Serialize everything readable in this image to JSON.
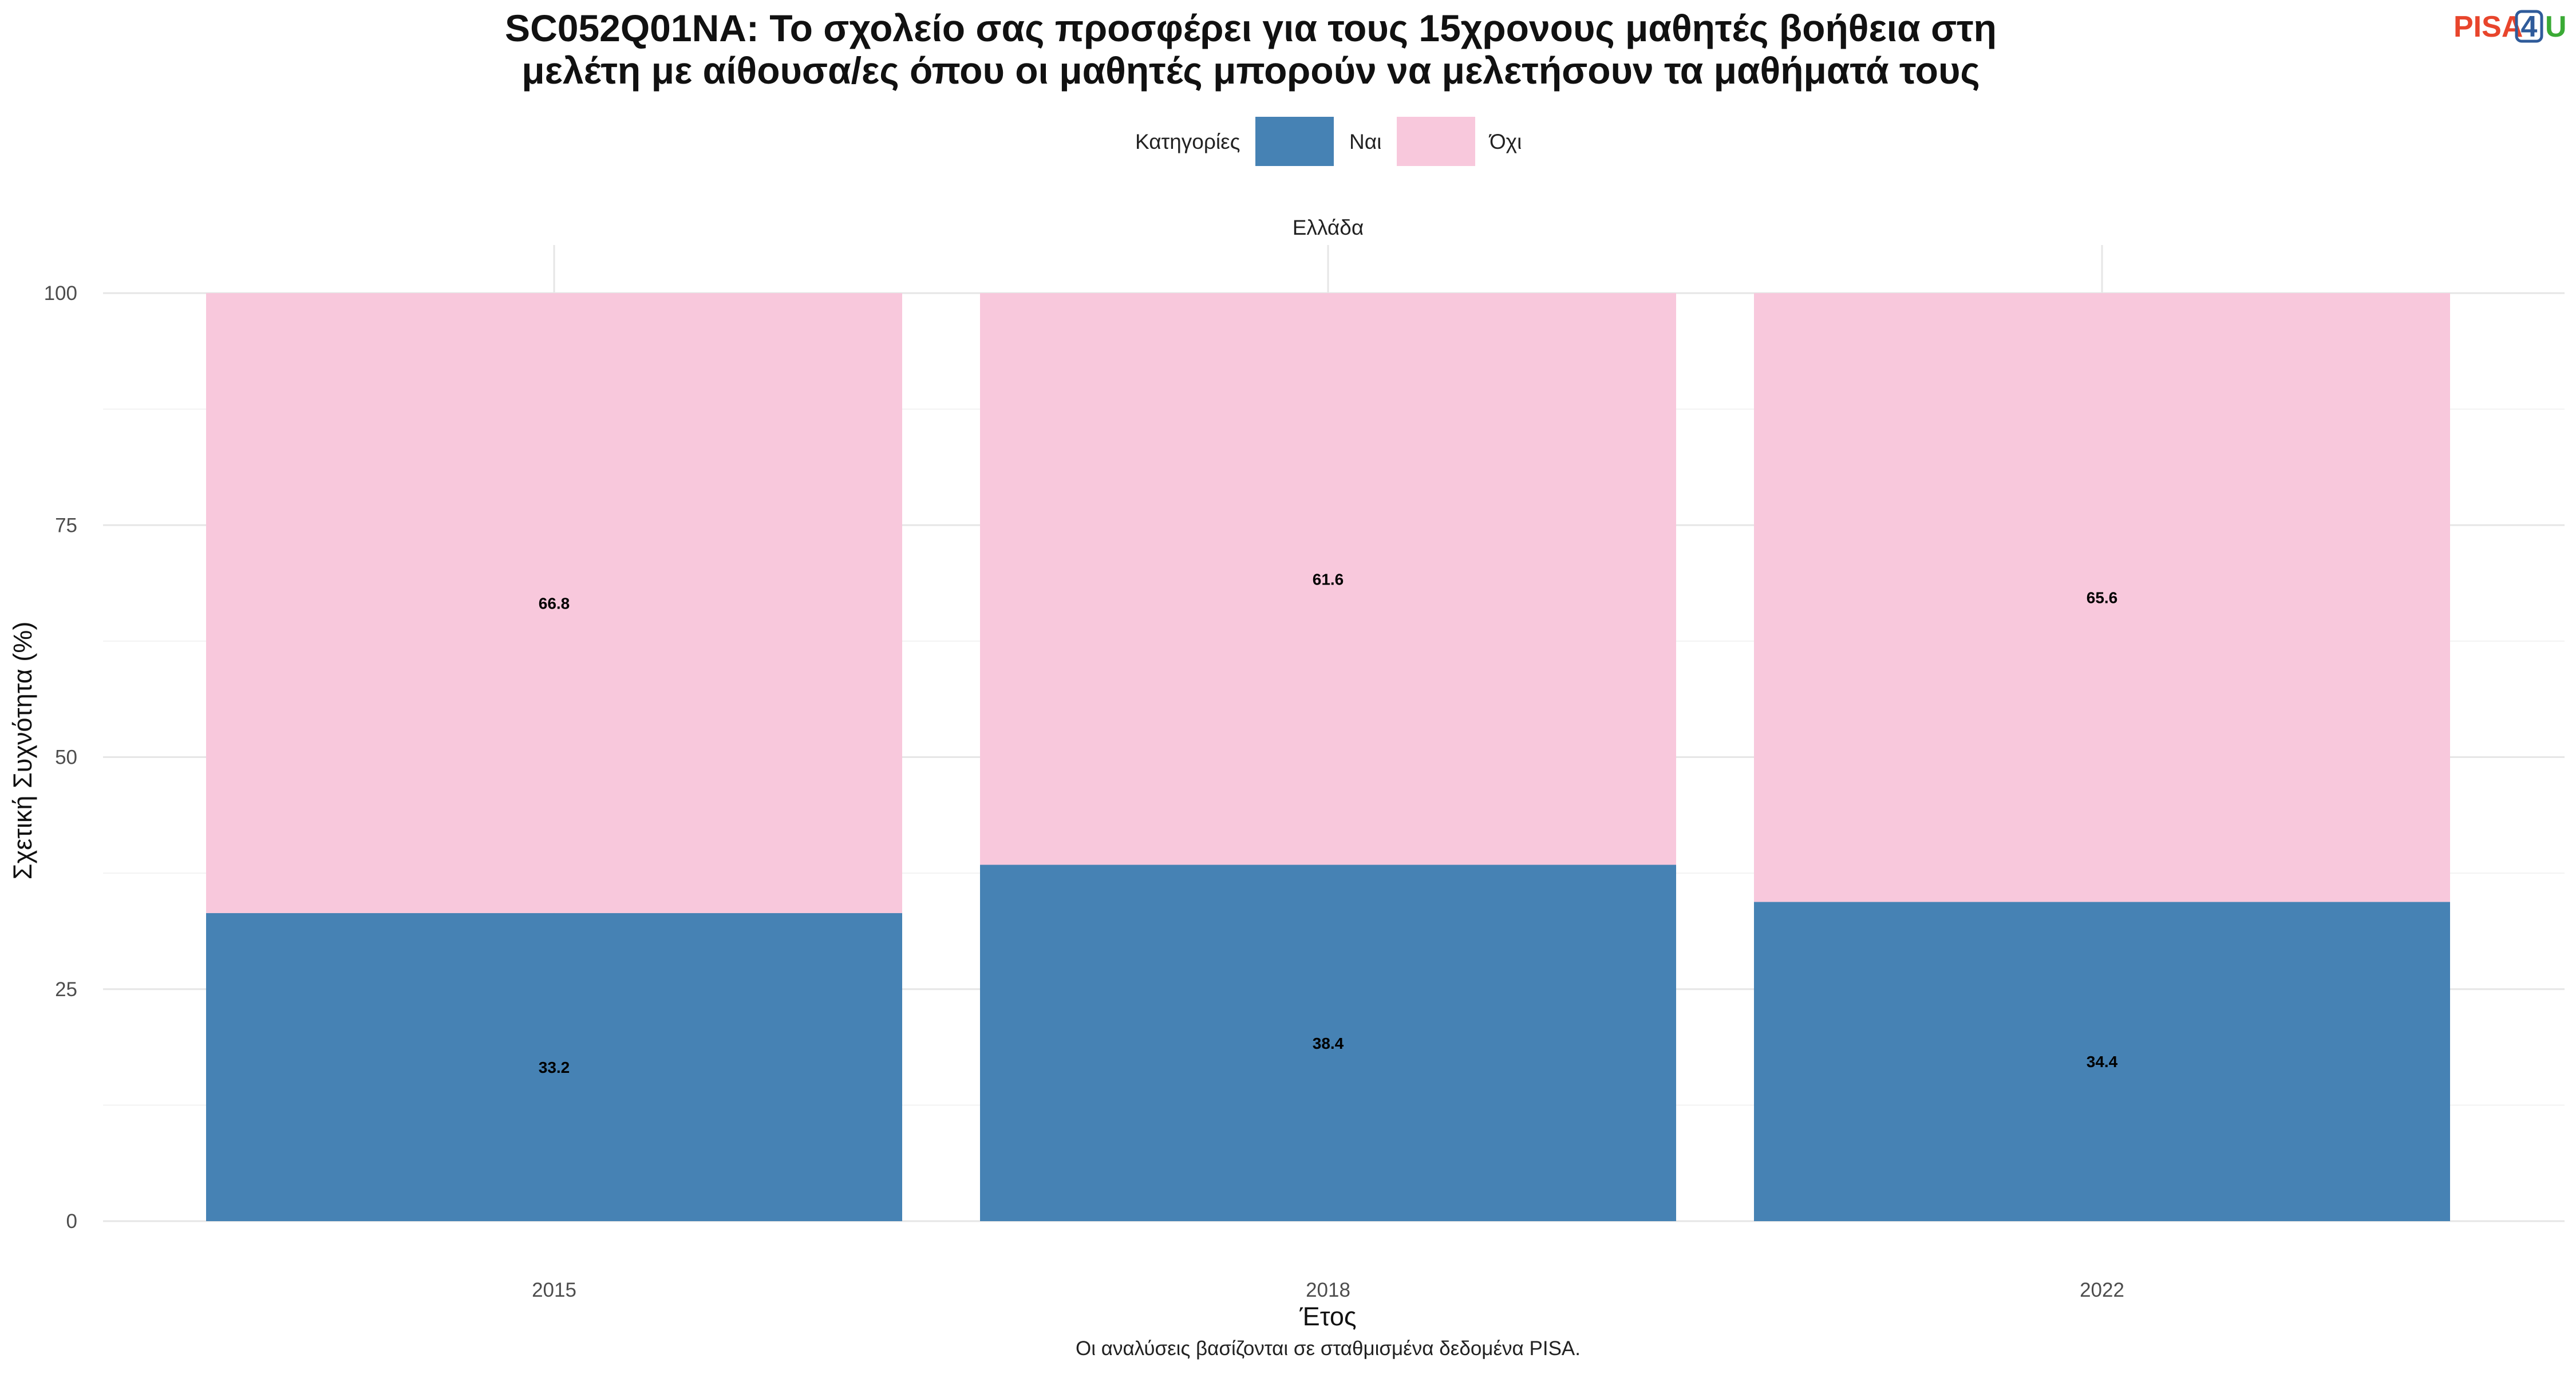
{
  "logo": {
    "part1": "PISA",
    "part2": "4",
    "part3": "U",
    "colors": {
      "part1": "#e8452c",
      "part2": "#2f5b9a",
      "part3": "#3aaa35"
    }
  },
  "chart_data": {
    "type": "bar",
    "stacked": true,
    "title_lines": [
      "SC052Q01NA: Το σχολείο σας προσφέρει για τους 15χρονους μαθητές βοήθεια στη",
      "μελέτη με αίθουσα/ες όπου οι μαθητές μπορούν να μελετήσουν τα μαθήματά τους"
    ],
    "facet": "Ελλάδα",
    "legend_title": "Κατηγορίες",
    "legend_position": "top",
    "categories": [
      "2015",
      "2018",
      "2022"
    ],
    "series": [
      {
        "name": "Ναι",
        "color": "#4682b4",
        "values": [
          33.2,
          38.4,
          34.4
        ]
      },
      {
        "name": "Όχι",
        "color": "#f8c8dc",
        "values": [
          66.8,
          61.6,
          65.6
        ]
      }
    ],
    "xlabel": "Έτος",
    "ylabel": "Σχετική Συχνότητα (%)",
    "ylim": [
      0,
      100
    ],
    "yticks": [
      0,
      25,
      50,
      75,
      100
    ],
    "grid": true,
    "caption": "Οι αναλύσεις βασίζονται σε σταθμισμένα δεδομένα PISA."
  }
}
